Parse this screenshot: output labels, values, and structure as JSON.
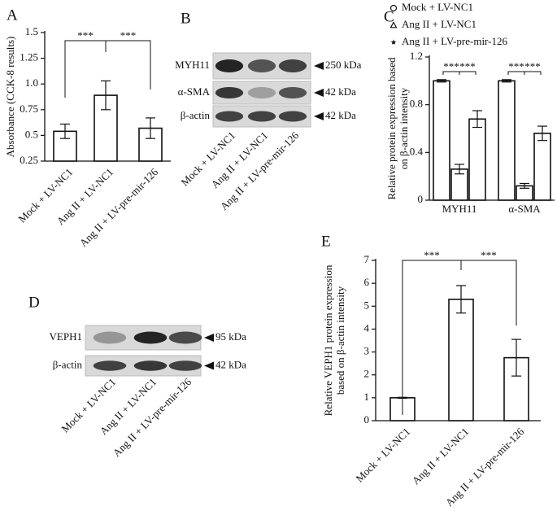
{
  "chart_data": [
    {
      "type": "bar",
      "panel": "A",
      "y_label": [
        "Absorbance (CCK-8 results)"
      ],
      "categories": [
        "Mock + LV-NC1",
        "Ang II + LV-NC1",
        "Ang II + LV-pre-mir-126"
      ],
      "values": [
        0.54,
        0.89,
        0.57
      ],
      "errors": [
        0.07,
        0.14,
        0.1
      ],
      "color": "#ffffff",
      "ylim": [
        0.25,
        1.5
      ],
      "yticks": [
        0.25,
        0.5,
        0.75,
        {
          "value": 1,
          "label": "1.0"
        },
        1.25,
        1.5
      ],
      "annotations": [
        "***",
        "***"
      ]
    },
    {
      "type": "bar",
      "panel": "C",
      "y_label": [
        "Relative protein expression based",
        "on β-actin intensity"
      ],
      "categories": [
        "MYH11",
        "α-SMA"
      ],
      "series": [
        {
          "name": "Mock + LV-NC1",
          "marker": "circle",
          "color": "#ffffff",
          "values": [
            1.0,
            1.0
          ],
          "errors": [
            0.01,
            0.01
          ]
        },
        {
          "name": "Ang II + LV-NC1",
          "marker": "triangle",
          "color": "#ffffff",
          "values": [
            0.26,
            0.12
          ],
          "errors": [
            0.04,
            0.02
          ]
        },
        {
          "name": "Ang II + LV-pre-mir-126",
          "marker": "star",
          "color": "#ffffff",
          "values": [
            0.68,
            0.56
          ],
          "errors": [
            0.07,
            0.06
          ]
        }
      ],
      "ylim": [
        0,
        1.2
      ],
      "yticks": [
        0,
        0.4,
        0.8,
        1.2
      ],
      "annotations": [
        "***",
        "***",
        "***",
        "***"
      ]
    },
    {
      "type": "bar",
      "panel": "E",
      "y_label": [
        "Relative VEPH1 protein expression",
        "based on β-actin intensity"
      ],
      "categories": [
        "Mock + LV-NC1",
        "Ang II + LV-NC1",
        "Ang II + LV-pre-mir-126"
      ],
      "values": [
        1.0,
        5.3,
        2.75
      ],
      "errors": [
        0.02,
        0.6,
        0.8
      ],
      "color": "#ffffff",
      "ylim": [
        0,
        7
      ],
      "yticks": [
        0,
        1,
        2,
        3,
        4,
        5,
        6,
        7
      ],
      "annotations": [
        "***",
        "***"
      ]
    }
  ],
  "blots": [
    {
      "panel": "B",
      "rows": [
        {
          "label": "MYH11",
          "size": "250 kDa"
        },
        {
          "label": "α-SMA",
          "size": "42 kDa"
        },
        {
          "label": "β-actin",
          "size": "42 kDa"
        }
      ],
      "lanes": [
        "Mock + LV-NC1",
        "Ang II + LV-NC1",
        "Ang II + LV-pre-mir-126"
      ]
    },
    {
      "panel": "D",
      "rows": [
        {
          "label": "VEPH1",
          "size": "95 kDa"
        },
        {
          "label": "β-actin",
          "size": "42 kDa"
        }
      ],
      "lanes": [
        "Mock + LV-NC1",
        "Ang II + LV-NC1",
        "Ang II + LV-pre-mir-126"
      ]
    }
  ]
}
